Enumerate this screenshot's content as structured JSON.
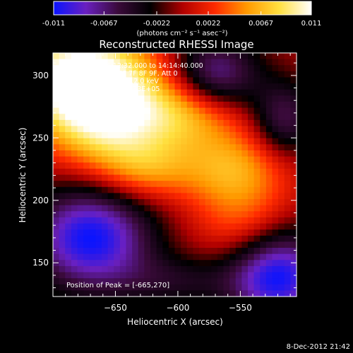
{
  "colorbar": {
    "ticks": [
      "-0.011",
      "-0.0067",
      "-0.0022",
      "0.0022",
      "0.0067",
      "0.011"
    ],
    "tick_values": [
      -0.011,
      -0.0067,
      -0.0022,
      0.0022,
      0.0067,
      0.011
    ],
    "range": [
      -0.011,
      0.011
    ],
    "units_label": "(photons cm⁻² s⁻¹ asec⁻²)",
    "colors": [
      "#0a14ff",
      "#6a20c0",
      "#3a0a3a",
      "#000000",
      "#b00000",
      "#ff2a00",
      "#ff9a00",
      "#ffe040",
      "#ffffff"
    ]
  },
  "chart_data": {
    "type": "heatmap",
    "title": "Reconstructed RHESSI Image",
    "xlabel": "Heliocentric X (arcsec)",
    "ylabel": "Heliocentric Y (arcsec)",
    "xlim": [
      -700,
      -505
    ],
    "ylim": [
      123,
      318
    ],
    "xticks": [
      -650,
      -600,
      -550
    ],
    "yticks": [
      150,
      200,
      250,
      300
    ],
    "xtick_labels": [
      "−650",
      "−600",
      "−550"
    ],
    "ytick_labels": [
      "150",
      "200",
      "250",
      "300"
    ],
    "peak": [
      -665,
      270
    ],
    "blobs": [
      {
        "x": -680,
        "y": 300,
        "amp": 0.011,
        "sx": 40,
        "sy": 30
      },
      {
        "x": -655,
        "y": 265,
        "amp": 0.008,
        "sx": 35,
        "sy": 30
      },
      {
        "x": -590,
        "y": 270,
        "amp": 0.006,
        "sx": 30,
        "sy": 20
      },
      {
        "x": -555,
        "y": 225,
        "amp": 0.006,
        "sx": 30,
        "sy": 22
      },
      {
        "x": -625,
        "y": 225,
        "amp": 0.0045,
        "sx": 28,
        "sy": 18
      },
      {
        "x": -545,
        "y": 180,
        "amp": 0.004,
        "sx": 28,
        "sy": 22
      },
      {
        "x": -570,
        "y": 300,
        "amp": -0.008,
        "sx": 25,
        "sy": 22
      },
      {
        "x": -515,
        "y": 265,
        "amp": -0.006,
        "sx": 18,
        "sy": 22
      },
      {
        "x": -670,
        "y": 170,
        "amp": -0.011,
        "sx": 35,
        "sy": 30
      },
      {
        "x": -520,
        "y": 140,
        "amp": -0.011,
        "sx": 28,
        "sy": 28
      },
      {
        "x": -600,
        "y": 135,
        "amp": -0.0035,
        "sx": 35,
        "sy": 15
      }
    ],
    "annotations": [
      "8-Dec-2012 14:12:32.000 to 14:14:40.000",
      "Detectors: 3F 5F 6F 7F 8F 9F, Att 0",
      "Energy Range: 6.0 - 12.0 keV",
      "Clean     Total counts: 3.33E+05"
    ],
    "peak_label": "Position of Peak = [-665,270]"
  },
  "footer": {
    "timestamp": "8-Dec-2012 21:42"
  }
}
